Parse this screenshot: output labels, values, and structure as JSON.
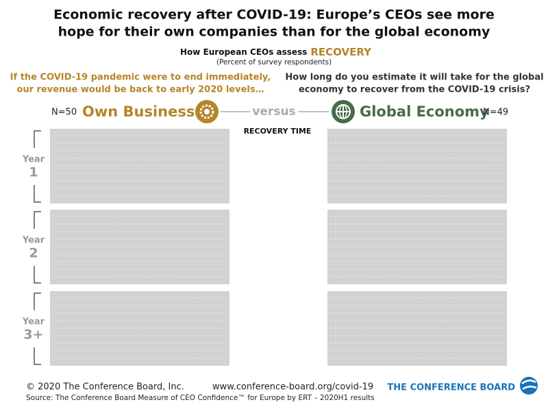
{
  "header": {
    "title_lines": [
      "Economic recovery after COVID-19: Europe’s CEOs see more",
      "hope for their own companies than for the global economy"
    ],
    "subtitle": "How European CEOs assess",
    "subtitle_highlight": "RECOVERY",
    "note": "(Percent of survey respondents)"
  },
  "left": {
    "question": [
      "If the COVID-19 pandemic were to end immediately,",
      "our revenue would be back to early 2020 levels…"
    ],
    "n": "N=50",
    "label": "Own Business"
  },
  "right": {
    "question": [
      "How long do you estimate it will take for the global",
      "economy to recover from the COVID-19 crisis?"
    ],
    "n": "N=49",
    "label": "Global Economy"
  },
  "versus": "versus",
  "center_label": "RECOVERY TIME",
  "rows": [
    {
      "word": "Year",
      "number": "1"
    },
    {
      "word": "Year",
      "number": "2"
    },
    {
      "word": "Year",
      "number": "3+"
    }
  ],
  "footer": {
    "copyright": "© 2020 The Conference Board, Inc.",
    "url": "www.conference-board.org/covid-19",
    "source": "Source: The Conference Board Measure of CEO Confidence™ for Europe by ERT – 2020H1 results",
    "logo": "THE CONFERENCE BOARD"
  }
}
